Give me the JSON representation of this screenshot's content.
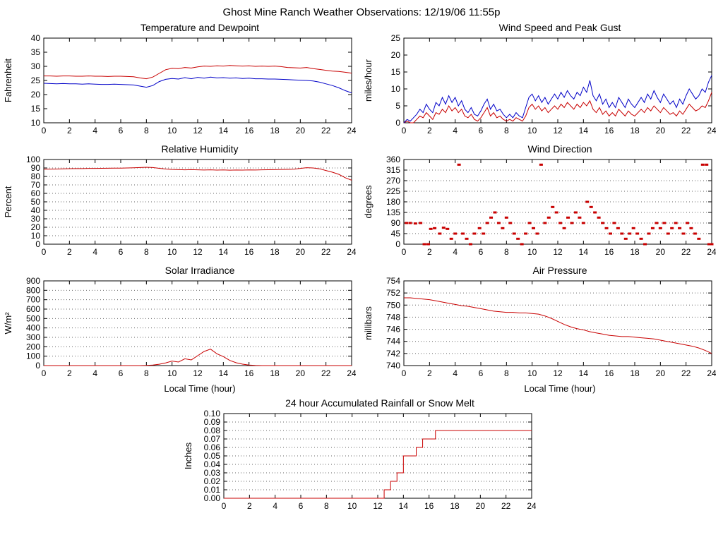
{
  "page_title": "Ghost Mine Ranch Weather Observations: 12/19/06 11:55p",
  "colors": {
    "line_red": "#c80000",
    "line_blue": "#0000c8",
    "grid": "#666666",
    "frame": "#000000"
  },
  "chart_data": [
    {
      "id": "temperature-dewpoint",
      "type": "line",
      "title": "Temperature and Dewpoint",
      "ylabel": "Fahrenheit",
      "xlabel": "",
      "xlim": [
        0,
        24
      ],
      "xtick_step": 2,
      "ylim": [
        10,
        40
      ],
      "ytick_step": 5,
      "grid": false,
      "tick_decimals": 0,
      "series": [
        {
          "name": "temperature",
          "color": "#c80000",
          "type": "line",
          "y": [
            26.6,
            26.6,
            26.5,
            26.6,
            26.6,
            26.5,
            26.5,
            26.6,
            26.5,
            26.5,
            26.4,
            26.5,
            26.5,
            26.4,
            26.3,
            25.9,
            25.6,
            26.2,
            27.5,
            28.8,
            29.3,
            29.2,
            29.6,
            29.4,
            29.8,
            30.1,
            30.0,
            30.2,
            30.1,
            30.3,
            30.2,
            30.1,
            30.2,
            30.0,
            30.1,
            30.0,
            30.1,
            29.9,
            29.6,
            29.5,
            29.4,
            29.6,
            29.2,
            28.9,
            28.6,
            28.3,
            28.2,
            27.9,
            27.6
          ]
        },
        {
          "name": "dewpoint",
          "color": "#0000c8",
          "type": "line",
          "y": [
            24.0,
            23.9,
            23.8,
            23.9,
            23.8,
            23.8,
            23.7,
            23.8,
            23.7,
            23.6,
            23.6,
            23.7,
            23.6,
            23.5,
            23.4,
            23.0,
            22.6,
            23.2,
            24.6,
            25.4,
            25.7,
            25.5,
            26.0,
            25.6,
            26.1,
            25.8,
            26.2,
            25.9,
            26.0,
            25.8,
            25.9,
            25.7,
            25.8,
            25.6,
            25.6,
            25.5,
            25.5,
            25.4,
            25.3,
            25.2,
            25.1,
            25.0,
            24.8,
            24.4,
            23.8,
            23.2,
            22.4,
            21.4,
            20.6
          ]
        }
      ]
    },
    {
      "id": "wind-speed-gust",
      "type": "line",
      "title": "Wind Speed and Peak Gust",
      "ylabel": "miles/hour",
      "xlabel": "",
      "xlim": [
        0,
        24
      ],
      "xtick_step": 2,
      "ylim": [
        0,
        25
      ],
      "ytick_step": 5,
      "grid": false,
      "tick_decimals": 0,
      "series": [
        {
          "name": "wind-speed",
          "color": "#c80000",
          "type": "line",
          "y": [
            0,
            0.5,
            0,
            0,
            1,
            2,
            1.5,
            3,
            2,
            1,
            3,
            2.5,
            4,
            3,
            5,
            3.5,
            4.5,
            3,
            4,
            2,
            1.5,
            2.5,
            1,
            0.5,
            1.5,
            3,
            4.5,
            2,
            3,
            1.5,
            2,
            1,
            0.5,
            1,
            0.5,
            1.5,
            1,
            0.5,
            2,
            4.5,
            5.5,
            4,
            5,
            3.5,
            4.5,
            3,
            4,
            5,
            4,
            5.5,
            4.5,
            6,
            5,
            4,
            5.5,
            4.5,
            6,
            5,
            6.5,
            4,
            3,
            4.5,
            2.5,
            3.5,
            2,
            3,
            2,
            4,
            3,
            2,
            3.5,
            2.5,
            2,
            3,
            4,
            3,
            4.5,
            3.5,
            5,
            4,
            3,
            4.5,
            3.5,
            2.5,
            3,
            2,
            3.5,
            2.5,
            4,
            5.5,
            4.5,
            3.5,
            4,
            5,
            4.5,
            6.5,
            9
          ]
        },
        {
          "name": "peak-gust",
          "color": "#0000c8",
          "type": "line",
          "y": [
            0,
            1,
            0.5,
            1.5,
            2.5,
            4,
            3,
            5.5,
            4,
            3,
            6,
            5,
            7.5,
            5.5,
            8,
            6,
            7.5,
            5,
            6.5,
            4,
            3,
            4.5,
            2.5,
            2,
            3.5,
            5.5,
            7,
            4,
            5.5,
            3.5,
            4,
            2.5,
            1.5,
            2.5,
            1.5,
            3,
            2,
            1.5,
            4.5,
            7.5,
            8.5,
            6.5,
            8,
            6,
            7.5,
            5.5,
            7,
            8.5,
            7,
            9,
            7.5,
            9.5,
            8,
            7,
            9,
            8,
            10.5,
            9,
            12.5,
            8,
            6.5,
            8.5,
            5.5,
            7,
            4.5,
            6,
            4.5,
            7.5,
            6,
            4.5,
            7,
            5.5,
            4.5,
            6,
            7.5,
            6,
            8.5,
            7,
            9.5,
            7.5,
            6,
            8.5,
            7,
            5.5,
            6.5,
            4.5,
            7,
            5.5,
            8,
            10,
            8.5,
            7,
            8,
            10,
            9,
            12,
            14
          ]
        }
      ]
    },
    {
      "id": "relative-humidity",
      "type": "line",
      "title": "Relative Humidity",
      "ylabel": "Percent",
      "xlabel": "",
      "xlim": [
        0,
        24
      ],
      "xtick_step": 2,
      "ylim": [
        0,
        100
      ],
      "ytick_step": 10,
      "grid": true,
      "tick_decimals": 0,
      "series": [
        {
          "name": "humidity",
          "color": "#c80000",
          "type": "line",
          "y": [
            88.5,
            88.6,
            88.8,
            89.0,
            89.2,
            89.3,
            89.3,
            89.5,
            89.5,
            89.6,
            89.7,
            89.8,
            89.8,
            90.0,
            90.2,
            90.5,
            90.8,
            90.5,
            89.6,
            88.8,
            88.2,
            88.0,
            87.8,
            88.0,
            87.8,
            87.6,
            87.8,
            87.5,
            87.7,
            87.4,
            87.6,
            87.5,
            87.7,
            87.6,
            87.8,
            87.9,
            88.0,
            88.2,
            88.3,
            88.5,
            89.5,
            90.3,
            90.0,
            89.0,
            87.0,
            85.0,
            82.5,
            78.5,
            75.5
          ]
        }
      ]
    },
    {
      "id": "wind-direction",
      "type": "scatter",
      "title": "Wind Direction",
      "ylabel": "degrees",
      "xlabel": "",
      "xlim": [
        0,
        24
      ],
      "xtick_step": 2,
      "ylim": [
        0,
        360
      ],
      "ytick_step": 45,
      "grid": true,
      "tick_decimals": 0,
      "series": [
        {
          "name": "direction",
          "color": "#c80000",
          "type": "scatter",
          "points": [
            [
              0.2,
              90
            ],
            [
              0.5,
              90
            ],
            [
              0.9,
              88
            ],
            [
              1.3,
              90
            ],
            [
              1.6,
              0
            ],
            [
              1.9,
              0
            ],
            [
              2.1,
              65
            ],
            [
              2.4,
              68
            ],
            [
              2.8,
              45
            ],
            [
              3.1,
              70
            ],
            [
              3.4,
              65
            ],
            [
              3.7,
              23
            ],
            [
              4.0,
              45
            ],
            [
              4.3,
              338
            ],
            [
              4.6,
              45
            ],
            [
              4.9,
              23
            ],
            [
              5.2,
              0
            ],
            [
              5.5,
              45
            ],
            [
              5.9,
              68
            ],
            [
              6.2,
              45
            ],
            [
              6.5,
              90
            ],
            [
              6.8,
              113
            ],
            [
              7.1,
              135
            ],
            [
              7.4,
              90
            ],
            [
              7.7,
              68
            ],
            [
              8.0,
              113
            ],
            [
              8.3,
              90
            ],
            [
              8.6,
              45
            ],
            [
              8.9,
              23
            ],
            [
              9.2,
              0
            ],
            [
              9.5,
              45
            ],
            [
              9.8,
              90
            ],
            [
              10.1,
              68
            ],
            [
              10.4,
              45
            ],
            [
              10.7,
              338
            ],
            [
              11.0,
              90
            ],
            [
              11.3,
              113
            ],
            [
              11.6,
              158
            ],
            [
              11.9,
              135
            ],
            [
              12.2,
              90
            ],
            [
              12.5,
              68
            ],
            [
              12.8,
              113
            ],
            [
              13.1,
              90
            ],
            [
              13.4,
              135
            ],
            [
              13.7,
              113
            ],
            [
              14.0,
              90
            ],
            [
              14.3,
              180
            ],
            [
              14.6,
              158
            ],
            [
              14.9,
              135
            ],
            [
              15.2,
              113
            ],
            [
              15.5,
              90
            ],
            [
              15.8,
              68
            ],
            [
              16.1,
              45
            ],
            [
              16.4,
              90
            ],
            [
              16.7,
              68
            ],
            [
              17.0,
              45
            ],
            [
              17.3,
              23
            ],
            [
              17.6,
              45
            ],
            [
              17.9,
              68
            ],
            [
              18.2,
              45
            ],
            [
              18.5,
              23
            ],
            [
              18.8,
              0
            ],
            [
              19.1,
              45
            ],
            [
              19.4,
              68
            ],
            [
              19.7,
              90
            ],
            [
              20.0,
              68
            ],
            [
              20.3,
              90
            ],
            [
              20.6,
              45
            ],
            [
              20.9,
              68
            ],
            [
              21.2,
              90
            ],
            [
              21.5,
              68
            ],
            [
              21.8,
              45
            ],
            [
              22.1,
              90
            ],
            [
              22.4,
              68
            ],
            [
              22.7,
              45
            ],
            [
              23.0,
              23
            ],
            [
              23.3,
              338
            ],
            [
              23.6,
              338
            ],
            [
              23.8,
              0
            ],
            [
              23.95,
              0
            ],
            [
              24.0,
              0
            ]
          ]
        }
      ]
    },
    {
      "id": "solar-irradiance",
      "type": "line",
      "title": "Solar Irradiance",
      "ylabel": "W/m²",
      "xlabel": "Local Time (hour)",
      "xlim": [
        0,
        24
      ],
      "xtick_step": 2,
      "ylim": [
        0,
        900
      ],
      "ytick_step": 100,
      "grid": true,
      "tick_decimals": 0,
      "series": [
        {
          "name": "irradiance",
          "color": "#c80000",
          "type": "line",
          "y": [
            0,
            0,
            0,
            0,
            0,
            0,
            0,
            0,
            0,
            0,
            0,
            0,
            0,
            0,
            0,
            0,
            2,
            6,
            14,
            28,
            48,
            38,
            72,
            60,
            105,
            150,
            175,
            125,
            95,
            55,
            30,
            15,
            6,
            2,
            0,
            0,
            0,
            0,
            0,
            0,
            0,
            0,
            0,
            0,
            0,
            0,
            0,
            0,
            0
          ]
        }
      ]
    },
    {
      "id": "air-pressure",
      "type": "line",
      "title": "Air Pressure",
      "ylabel": "millibars",
      "xlabel": "Local Time (hour)",
      "xlim": [
        0,
        24
      ],
      "xtick_step": 2,
      "ylim": [
        740,
        754
      ],
      "ytick_step": 2,
      "grid": true,
      "tick_decimals": 0,
      "series": [
        {
          "name": "pressure",
          "color": "#c80000",
          "type": "line",
          "y": [
            751.2,
            751.2,
            751.1,
            751.0,
            750.9,
            750.7,
            750.5,
            750.3,
            750.1,
            749.9,
            749.8,
            749.6,
            749.4,
            749.2,
            749.0,
            748.9,
            748.8,
            748.8,
            748.7,
            748.7,
            748.6,
            748.5,
            748.2,
            747.8,
            747.3,
            746.8,
            746.4,
            746.1,
            745.9,
            745.6,
            745.4,
            745.2,
            745.0,
            744.9,
            744.8,
            744.8,
            744.7,
            744.6,
            744.5,
            744.4,
            744.2,
            744.0,
            743.8,
            743.6,
            743.4,
            743.2,
            742.9,
            742.5,
            742.0
          ]
        }
      ]
    },
    {
      "id": "accumulated-rainfall",
      "type": "line",
      "title": "24 hour Accumulated Rainfall or Snow Melt",
      "ylabel": "Inches",
      "xlabel": "",
      "xlim": [
        0,
        24
      ],
      "xtick_step": 2,
      "ylim": [
        0,
        0.1
      ],
      "ytick_step": 0.01,
      "grid": true,
      "tick_decimals": 2,
      "series": [
        {
          "name": "rainfall",
          "color": "#c80000",
          "type": "step",
          "y": [
            0,
            0,
            0,
            0,
            0,
            0,
            0,
            0,
            0,
            0,
            0,
            0,
            0,
            0,
            0,
            0,
            0,
            0,
            0,
            0,
            0,
            0,
            0,
            0,
            0,
            0.01,
            0.02,
            0.03,
            0.05,
            0.05,
            0.06,
            0.07,
            0.07,
            0.08,
            0.08,
            0.08,
            0.08,
            0.08,
            0.08,
            0.08,
            0.08,
            0.08,
            0.08,
            0.08,
            0.08,
            0.08,
            0.08,
            0.08,
            0.08
          ]
        }
      ]
    }
  ]
}
